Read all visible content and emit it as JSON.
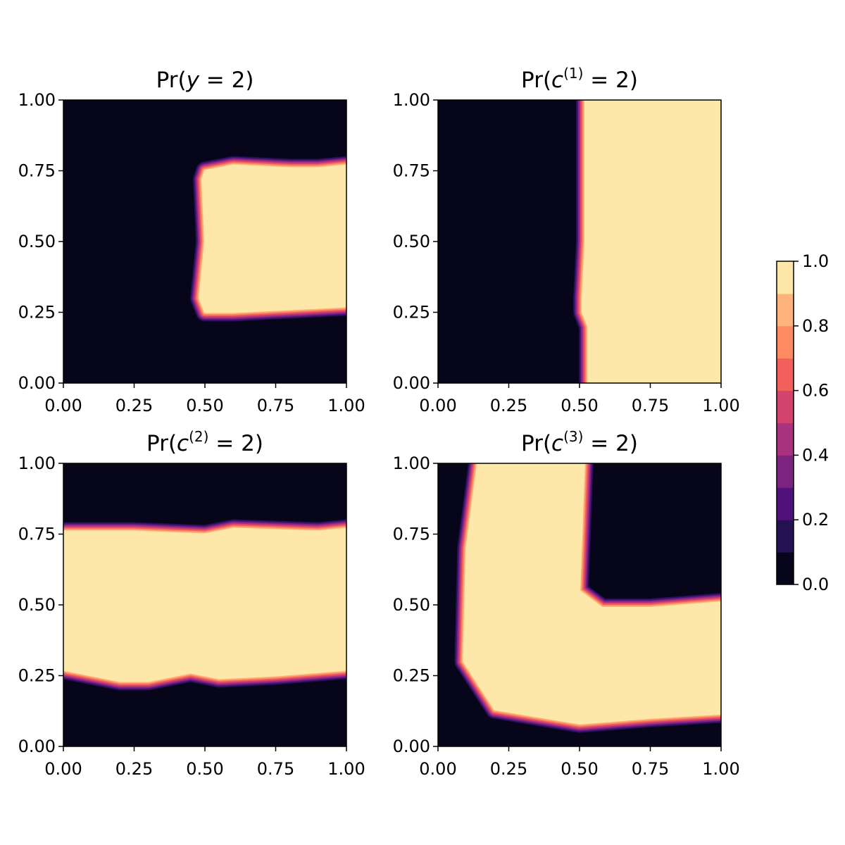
{
  "chart_data": [
    {
      "type": "contourf",
      "title": {
        "prefix": "Pr(",
        "var": "y",
        "sup": "",
        "suffix": " = 2)"
      },
      "xlim": [
        0,
        1
      ],
      "ylim": [
        0,
        1
      ],
      "xticks": [
        "0.00",
        "0.25",
        "0.50",
        "0.75",
        "1.00"
      ],
      "yticks": [
        "0.00",
        "0.25",
        "0.50",
        "0.75",
        "1.00"
      ],
      "high_region": {
        "shape": "rectangle",
        "x_left_edge": [
          [
            0.0,
            0.47
          ],
          [
            0.25,
            0.49
          ],
          [
            0.5,
            0.5
          ],
          [
            0.75,
            0.5
          ],
          [
            1.0,
            0.5
          ]
        ],
        "top_edge": [
          [
            0.5,
            0.75
          ],
          [
            0.6,
            0.77
          ],
          [
            0.8,
            0.76
          ],
          [
            0.9,
            0.76
          ],
          [
            1.0,
            0.77
          ]
        ],
        "bottom_edge": [
          [
            0.5,
            0.25
          ],
          [
            0.6,
            0.25
          ],
          [
            0.8,
            0.26
          ],
          [
            1.0,
            0.27
          ]
        ],
        "x_range": [
          0.5,
          1.0
        ],
        "y_range": [
          0.26,
          0.76
        ]
      }
    },
    {
      "type": "contourf",
      "title": {
        "prefix": "Pr(",
        "var": "c",
        "sup": "(1)",
        "suffix": " = 2)"
      },
      "xlim": [
        0,
        1
      ],
      "ylim": [
        0,
        1
      ],
      "xticks": [
        "0.00",
        "0.25",
        "0.50",
        "0.75",
        "1.00"
      ],
      "yticks": [
        "0.00",
        "0.25",
        "0.50",
        "0.75",
        "1.00"
      ],
      "high_region": {
        "shape": "right-half",
        "boundary_x": [
          [
            1.0,
            0.5
          ],
          [
            0.75,
            0.5
          ],
          [
            0.5,
            0.5
          ],
          [
            0.3,
            0.49
          ],
          [
            0.25,
            0.49
          ],
          [
            0.2,
            0.51
          ],
          [
            0.0,
            0.51
          ]
        ],
        "x_range": [
          0.5,
          1.0
        ],
        "y_range": [
          0.0,
          1.0
        ]
      }
    },
    {
      "type": "contourf",
      "title": {
        "prefix": "Pr(",
        "var": "c",
        "sup": "(2)",
        "suffix": " = 2)"
      },
      "xlim": [
        0,
        1
      ],
      "ylim": [
        0,
        1
      ],
      "xticks": [
        "0.00",
        "0.25",
        "0.50",
        "0.75",
        "1.00"
      ],
      "yticks": [
        "0.00",
        "0.25",
        "0.50",
        "0.75",
        "1.00"
      ],
      "high_region": {
        "shape": "horizontal-band",
        "top_edge": [
          [
            0.0,
            0.76
          ],
          [
            0.25,
            0.76
          ],
          [
            0.5,
            0.75
          ],
          [
            0.6,
            0.77
          ],
          [
            0.9,
            0.76
          ],
          [
            1.0,
            0.77
          ]
        ],
        "bottom_edge": [
          [
            0.0,
            0.27
          ],
          [
            0.2,
            0.23
          ],
          [
            0.3,
            0.23
          ],
          [
            0.45,
            0.26
          ],
          [
            0.55,
            0.24
          ],
          [
            0.75,
            0.25
          ],
          [
            1.0,
            0.27
          ]
        ],
        "x_range": [
          0.0,
          1.0
        ],
        "y_range": [
          0.25,
          0.76
        ]
      }
    },
    {
      "type": "contourf",
      "title": {
        "prefix": "Pr(",
        "var": "c",
        "sup": "(3)",
        "suffix": " = 2)"
      },
      "xlim": [
        0,
        1
      ],
      "ylim": [
        0,
        1
      ],
      "xticks": [
        "0.00",
        "0.25",
        "0.50",
        "0.75",
        "1.00"
      ],
      "yticks": [
        "0.00",
        "0.25",
        "0.50",
        "0.75",
        "1.00"
      ],
      "high_region": {
        "shape": "L-shape",
        "outer_polygon": [
          [
            0.13,
            1.0
          ],
          [
            0.1,
            0.7
          ],
          [
            0.09,
            0.3
          ],
          [
            0.2,
            0.13
          ],
          [
            0.5,
            0.08
          ],
          [
            0.75,
            0.1
          ],
          [
            1.0,
            0.12
          ],
          [
            1.0,
            0.51
          ],
          [
            0.75,
            0.49
          ],
          [
            0.58,
            0.49
          ],
          [
            0.5,
            0.55
          ],
          [
            0.5,
            1.0
          ]
        ],
        "vertical_arm_x": [
          0.13,
          0.5
        ],
        "horizontal_arm_y": [
          0.1,
          0.5
        ]
      }
    }
  ],
  "colorbar": {
    "range": [
      0.0,
      1.0
    ],
    "levels": [
      0.0,
      0.1,
      0.2,
      0.3,
      0.4,
      0.5,
      0.6,
      0.7,
      0.8,
      0.9,
      1.0
    ],
    "tick_labels": [
      "0.0",
      "0.2",
      "0.4",
      "0.6",
      "0.8",
      "1.0"
    ],
    "colormap": "magma",
    "colors": [
      "#06051a",
      "#231151",
      "#4f127b",
      "#7c2382",
      "#a8327d",
      "#d3436e",
      "#f1605d",
      "#fe8a62",
      "#feb37c",
      "#fde7a9"
    ]
  }
}
